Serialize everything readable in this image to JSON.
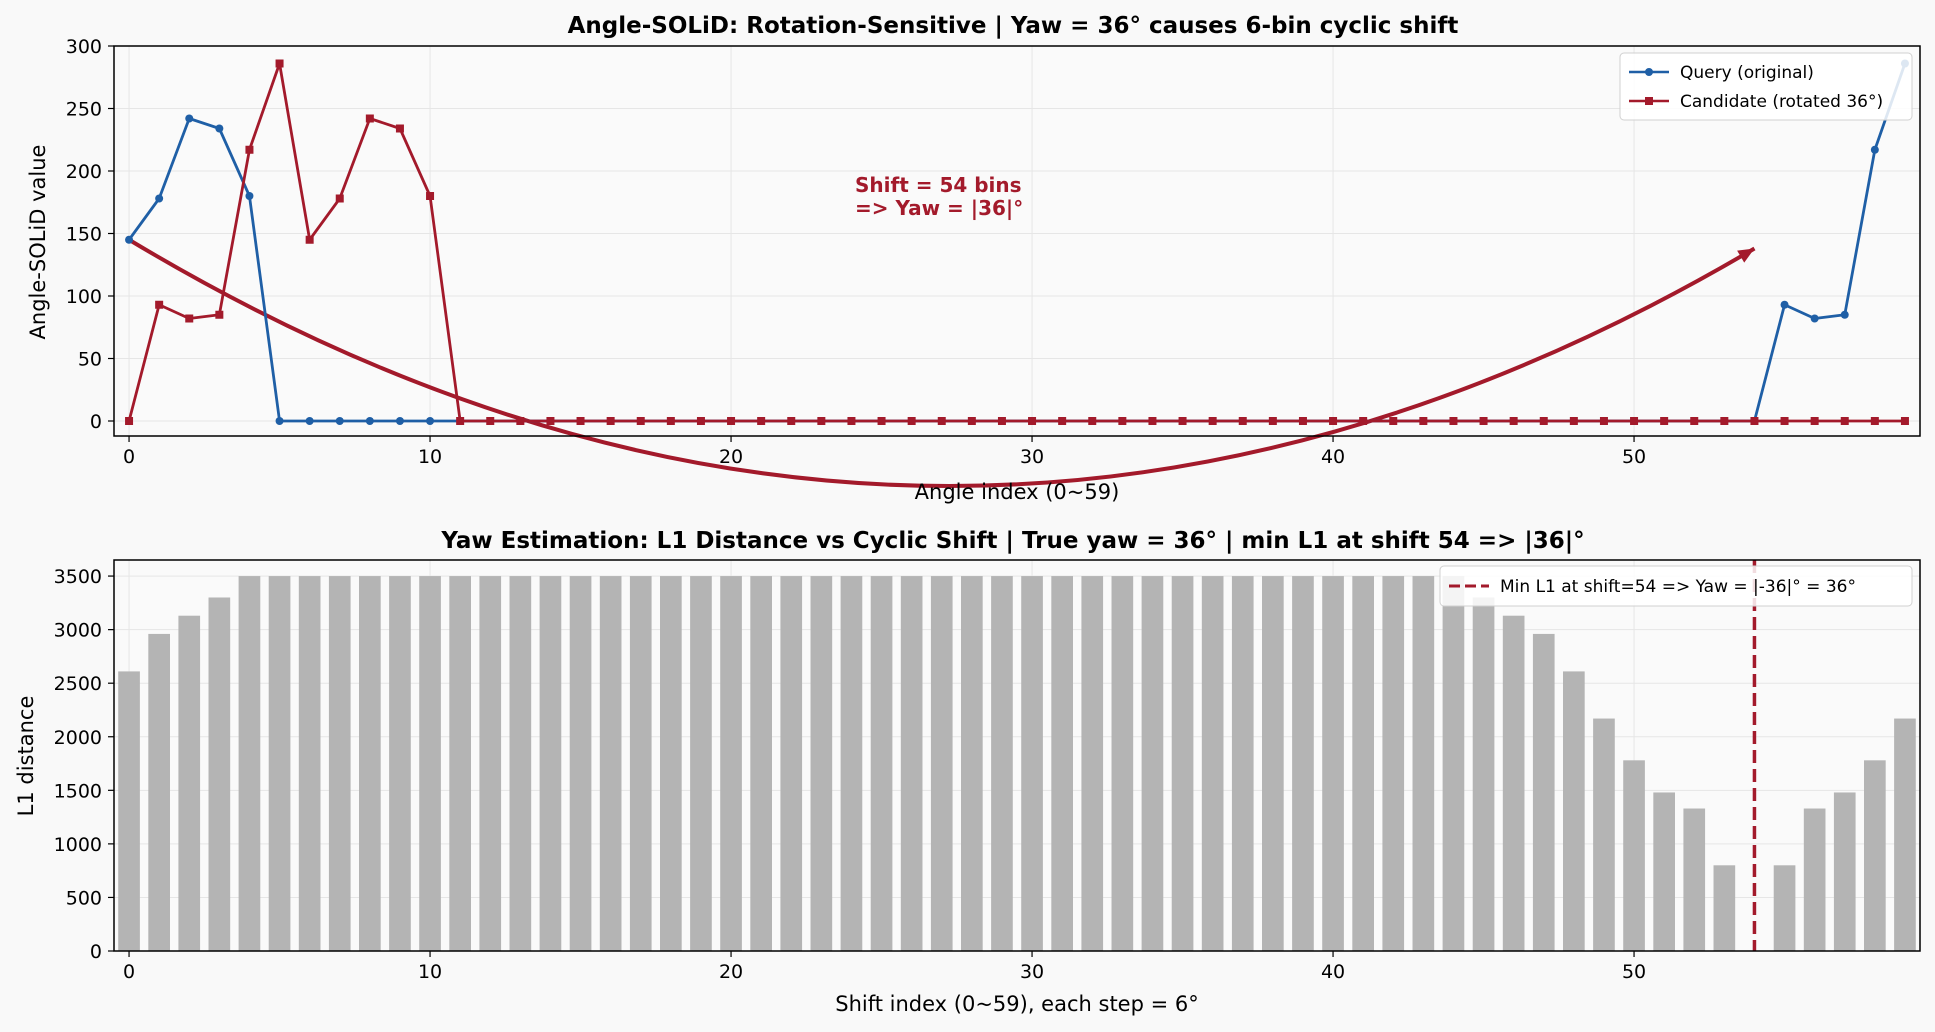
{
  "chart_data": [
    {
      "type": "line",
      "title": "Angle-SOLiD: Rotation-Sensitive  |  Yaw = 36° causes 6-bin cyclic shift",
      "xlabel": "Angle index (0~59)",
      "ylabel": "Angle-SOLiD value",
      "xlim": [
        -0.5,
        59.5
      ],
      "ylim": [
        -12,
        300
      ],
      "xticks": [
        0,
        10,
        20,
        30,
        40,
        50
      ],
      "yticks": [
        0,
        50,
        100,
        150,
        200,
        250,
        300
      ],
      "grid": true,
      "legend": "top-right",
      "series": [
        {
          "name": "Query (original)",
          "color": "#1f5fa6",
          "marker": "circle",
          "values": [
            145,
            178,
            242,
            234,
            180,
            0,
            0,
            0,
            0,
            0,
            0,
            0,
            0,
            0,
            0,
            0,
            0,
            0,
            0,
            0,
            0,
            0,
            0,
            0,
            0,
            0,
            0,
            0,
            0,
            0,
            0,
            0,
            0,
            0,
            0,
            0,
            0,
            0,
            0,
            0,
            0,
            0,
            0,
            0,
            0,
            0,
            0,
            0,
            0,
            0,
            0,
            0,
            0,
            0,
            0,
            93,
            82,
            85,
            217,
            286
          ]
        },
        {
          "name": "Candidate (rotated 36°)",
          "color": "#a31a2b",
          "marker": "square",
          "values": [
            0,
            93,
            82,
            85,
            217,
            286,
            145,
            178,
            242,
            234,
            180,
            0,
            0,
            0,
            0,
            0,
            0,
            0,
            0,
            0,
            0,
            0,
            0,
            0,
            0,
            0,
            0,
            0,
            0,
            0,
            0,
            0,
            0,
            0,
            0,
            0,
            0,
            0,
            0,
            0,
            0,
            0,
            0,
            0,
            0,
            0,
            0,
            0,
            0,
            0,
            0,
            0,
            0,
            0,
            0,
            0,
            0,
            0,
            0,
            0
          ]
        }
      ],
      "annotation": {
        "lines": [
          "Shift = 54 bins",
          "=> Yaw = |36|°"
        ],
        "color": "#a31a2b",
        "arrow_from": [
          0,
          145
        ],
        "arrow_to": [
          54,
          138
        ],
        "arrow_bend_y": -52,
        "text_at": [
          24.2,
          182
        ]
      }
    },
    {
      "type": "bar",
      "title": "Yaw Estimation: L1 Distance vs Cyclic Shift  |  True yaw = 36°  |  min L1 at shift 54 => |36|°",
      "xlabel": "Shift index (0~59), each step = 6°",
      "ylabel": "L1 distance",
      "xlim": [
        -0.5,
        59.5
      ],
      "ylim": [
        0,
        3650
      ],
      "xticks": [
        0,
        10,
        20,
        30,
        40,
        50
      ],
      "yticks": [
        0,
        500,
        1000,
        1500,
        2000,
        2500,
        3000,
        3500
      ],
      "grid": true,
      "legend": "top-right",
      "bar_color": "#b4b4b4",
      "values": [
        2610,
        2960,
        3130,
        3300,
        3500,
        3500,
        3500,
        3500,
        3500,
        3500,
        3500,
        3500,
        3500,
        3500,
        3500,
        3500,
        3500,
        3500,
        3500,
        3500,
        3500,
        3500,
        3500,
        3500,
        3500,
        3500,
        3500,
        3500,
        3500,
        3500,
        3500,
        3500,
        3500,
        3500,
        3500,
        3500,
        3500,
        3500,
        3500,
        3500,
        3500,
        3500,
        3500,
        3500,
        3500,
        3300,
        3130,
        2960,
        2610,
        2170,
        1780,
        1480,
        1330,
        800,
        0,
        800,
        1330,
        1480,
        1780,
        2170
      ],
      "vline": {
        "x": 54,
        "color": "#a31a2b",
        "label": "Min L1 at shift=54  =>  Yaw = |-36|° = 36°"
      }
    }
  ]
}
